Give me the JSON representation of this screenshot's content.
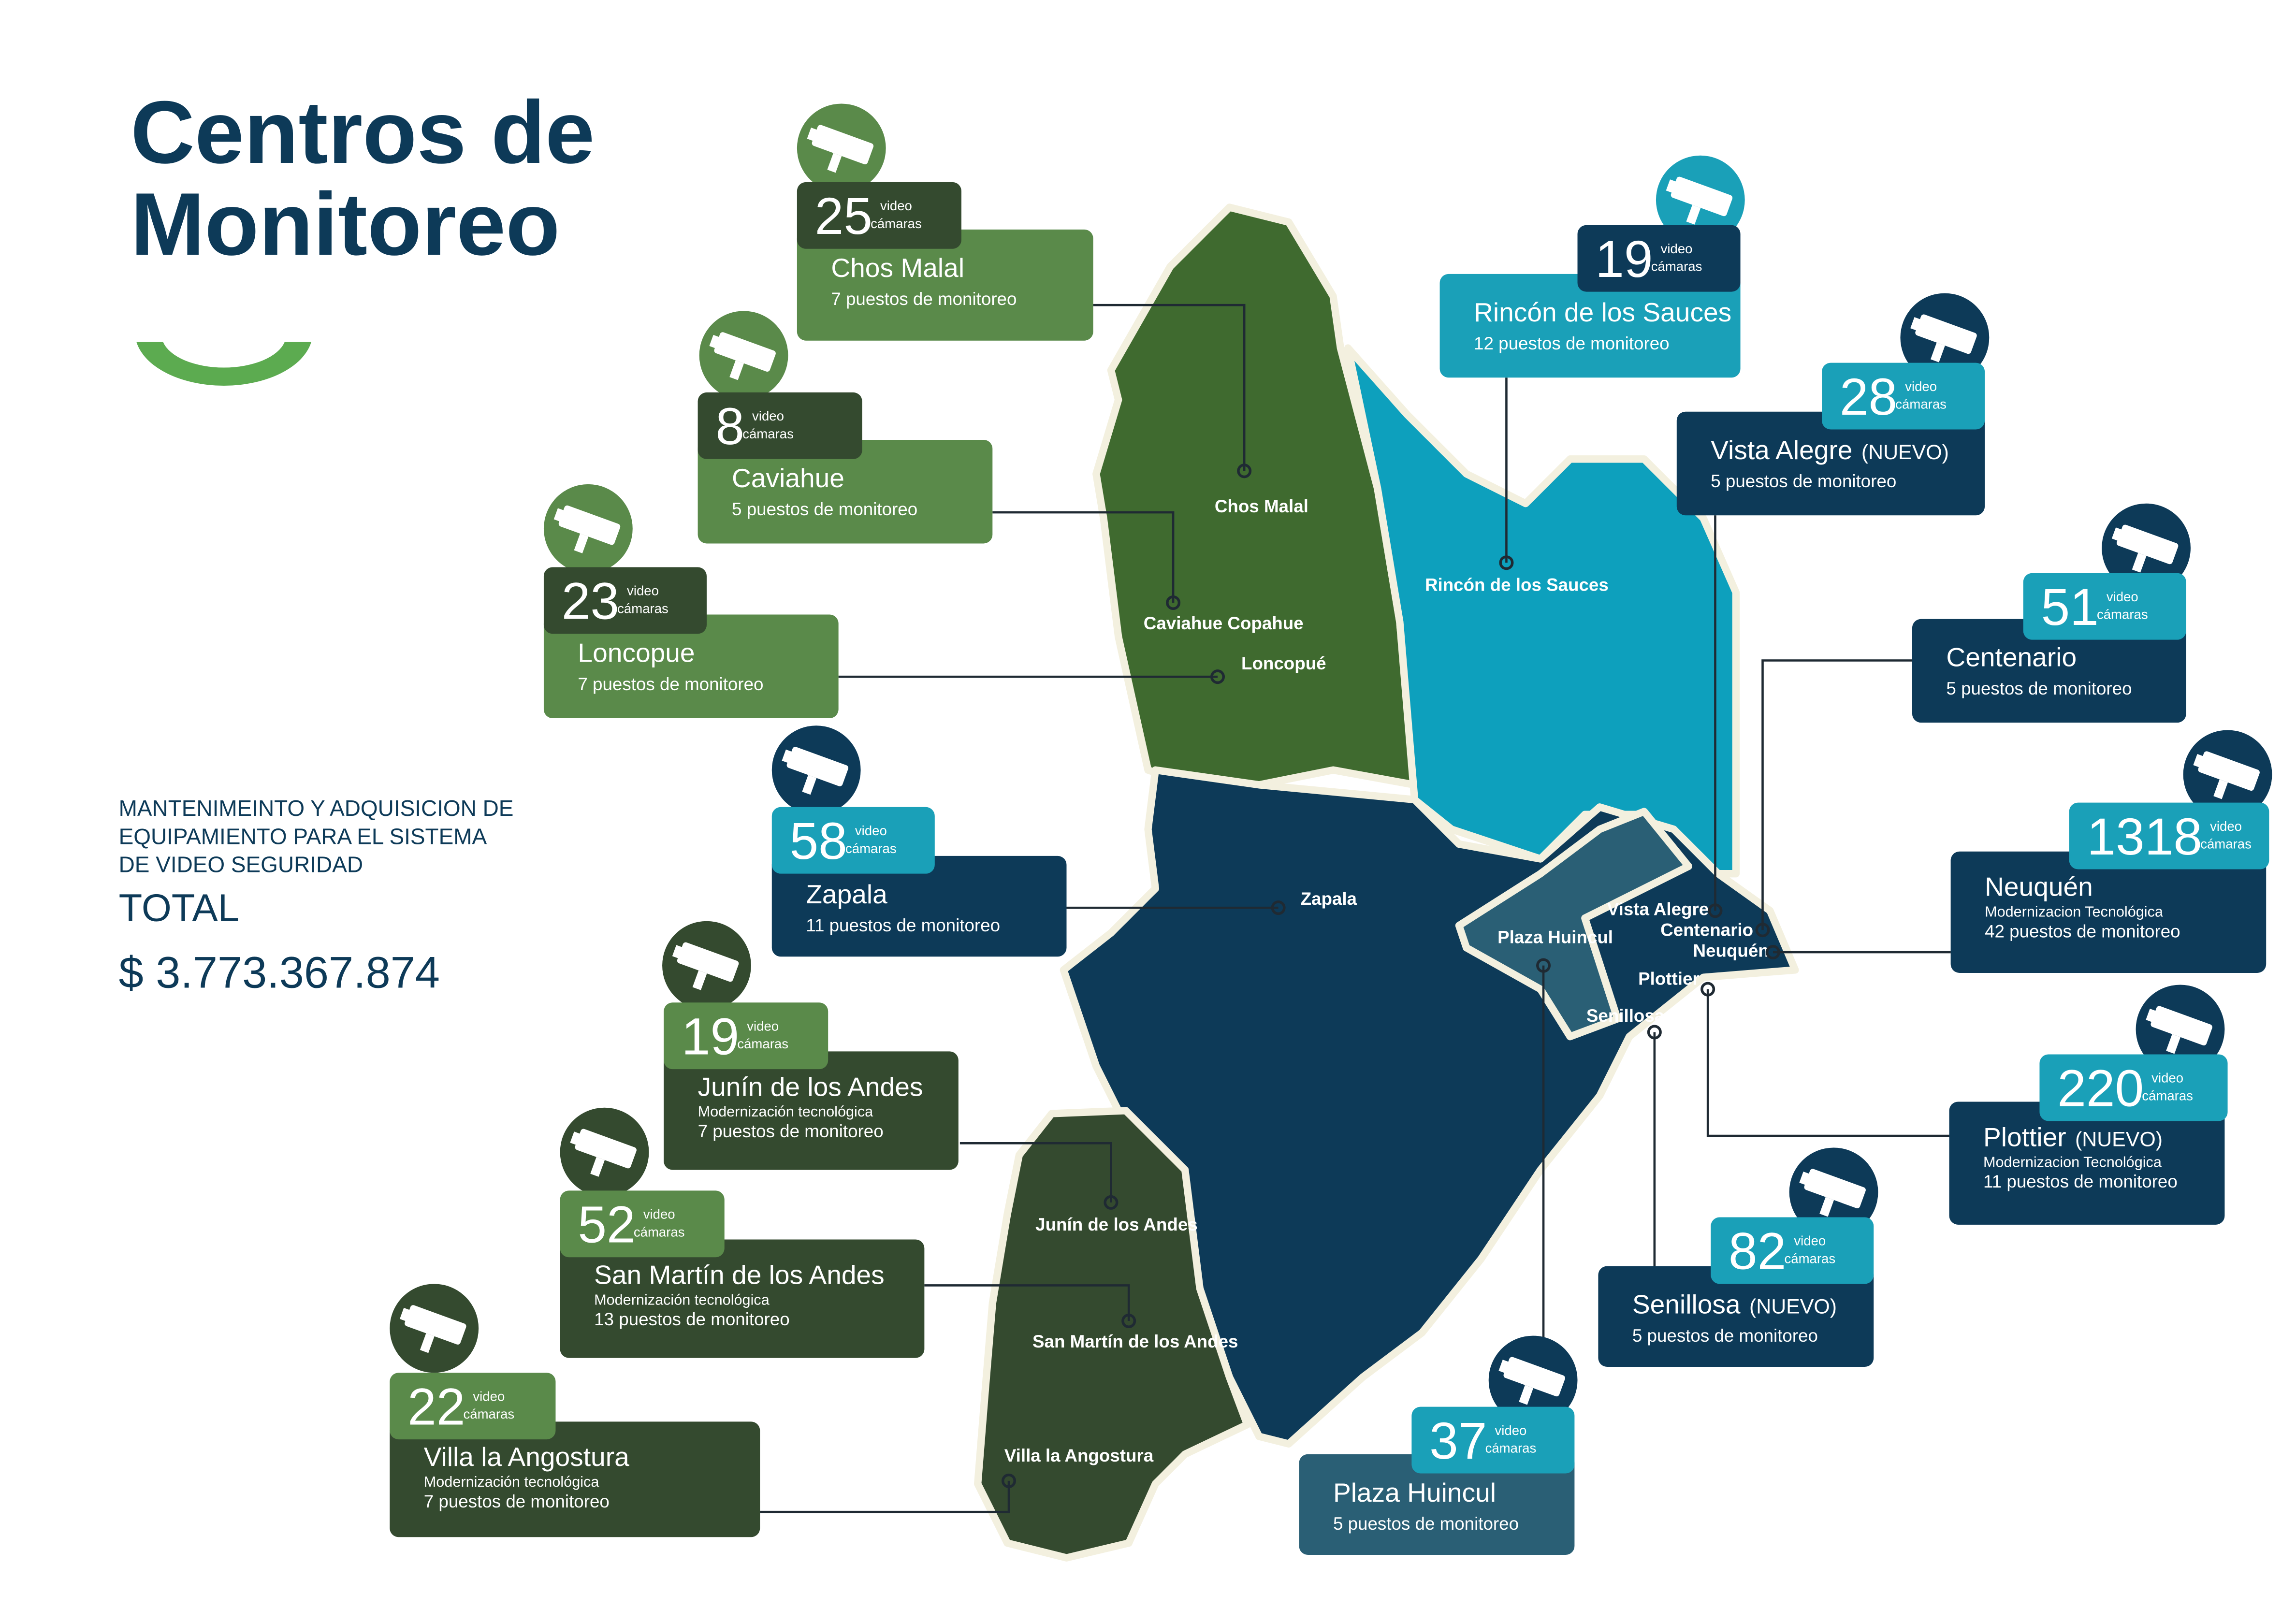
{
  "header": {
    "title_lines": [
      "Centros de",
      "Monitoreo"
    ]
  },
  "summary": {
    "description_lines": [
      "MANTENIMEINTO Y ADQUISICION DE",
      "EQUIPAMIENTO PARA EL SISTEMA",
      "DE VIDEO SEGURIDAD"
    ],
    "total_label": "TOTAL",
    "total_amount": "$ 3.773.367.874"
  },
  "centers": [
    {
      "cameras": 25,
      "unit": [
        "video",
        "cámaras"
      ],
      "name": "Chos Malal",
      "stations": "7 puestos de monitoreo"
    },
    {
      "cameras": 8,
      "unit": [
        "video",
        "cámaras"
      ],
      "name": "Caviahue",
      "stations": "5 puestos de monitoreo"
    },
    {
      "cameras": 23,
      "unit": [
        "video",
        "cámaras"
      ],
      "name": "Loncopue",
      "stations": "7 puestos de monitoreo"
    },
    {
      "cameras": 58,
      "unit": [
        "video",
        "cámaras"
      ],
      "name": "Zapala",
      "stations": "11 puestos de monitoreo"
    },
    {
      "cameras": 19,
      "unit": [
        "video",
        "cámaras"
      ],
      "name": "Junín de los Andes",
      "note": "Modernización tecnológica",
      "stations": "7 puestos de monitoreo"
    },
    {
      "cameras": 52,
      "unit": [
        "video",
        "cámaras"
      ],
      "name": "San Martín de los Andes",
      "note": "Modernización tecnológica",
      "stations": "13 puestos de monitoreo"
    },
    {
      "cameras": 22,
      "unit": [
        "video",
        "cámaras"
      ],
      "name": "Villa la Angostura",
      "note": "Modernización tecnológica",
      "stations": "7 puestos de monitoreo"
    },
    {
      "cameras": 19,
      "unit": [
        "video",
        "cámaras"
      ],
      "name": "Rincón de los Sauces",
      "stations": "12 puestos de monitoreo"
    },
    {
      "cameras": 28,
      "unit": [
        "video",
        "cámaras"
      ],
      "name": "Vista Alegre",
      "tag": "(NUEVO)",
      "stations": "5 puestos de monitoreo"
    },
    {
      "cameras": 51,
      "unit": [
        "video",
        "cámaras"
      ],
      "name": "Centenario",
      "stations": "5 puestos de monitoreo"
    },
    {
      "cameras": 1318,
      "unit": [
        "video",
        "cámaras"
      ],
      "name": "Neuquén",
      "note": "Modernizacion Tecnológica",
      "stations": "42 puestos de monitoreo"
    },
    {
      "cameras": 220,
      "unit": [
        "video",
        "cámaras"
      ],
      "name": "Plottier",
      "tag": "(NUEVO)",
      "note": "Modernizacion Tecnológica",
      "stations": "11 puestos de monitoreo"
    },
    {
      "cameras": 82,
      "unit": [
        "video",
        "cámaras"
      ],
      "name": "Senillosa",
      "tag": "(NUEVO)",
      "stations": "5 puestos de monitoreo"
    },
    {
      "cameras": 37,
      "unit": [
        "video",
        "cámaras"
      ],
      "name": "Plaza Huincul",
      "stations": "5 puestos de monitoreo"
    }
  ],
  "map_labels": [
    "Chos Malal",
    "Caviahue Copahue",
    "Loncopué",
    "Rincón de los Sauces",
    "Zapala",
    "Plaza Huincul",
    "Vista Alegre",
    "Centenario",
    "Neuquén",
    "Plottier",
    "Senillosa",
    "Junín de los Andes",
    "San Martín de los Andes",
    "Villa la Angostura"
  ]
}
